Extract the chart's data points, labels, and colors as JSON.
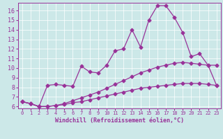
{
  "xlabel": "Windchill (Refroidissement éolien,°C)",
  "bg_color": "#cce8e8",
  "line_color": "#993399",
  "xlim": [
    -0.5,
    23.5
  ],
  "ylim": [
    5.8,
    16.8
  ],
  "xticks": [
    0,
    1,
    2,
    3,
    4,
    5,
    6,
    7,
    8,
    9,
    10,
    11,
    12,
    13,
    14,
    15,
    16,
    17,
    18,
    19,
    20,
    21,
    22,
    23
  ],
  "yticks": [
    6,
    7,
    8,
    9,
    10,
    11,
    12,
    13,
    14,
    15,
    16
  ],
  "line1_y": [
    6.5,
    6.3,
    6.0,
    6.0,
    6.1,
    6.2,
    6.4,
    6.5,
    6.7,
    6.9,
    7.1,
    7.3,
    7.5,
    7.7,
    7.9,
    8.0,
    8.1,
    8.2,
    8.3,
    8.4,
    8.4,
    8.4,
    8.3,
    8.2
  ],
  "line2_y": [
    6.5,
    6.3,
    6.0,
    6.0,
    6.1,
    6.3,
    6.6,
    6.9,
    7.2,
    7.5,
    7.9,
    8.3,
    8.7,
    9.1,
    9.5,
    9.8,
    10.1,
    10.3,
    10.5,
    10.6,
    10.5,
    10.4,
    10.3,
    10.3
  ],
  "line3_y": [
    6.5,
    6.3,
    6.0,
    8.2,
    8.3,
    8.2,
    8.1,
    10.2,
    9.6,
    9.5,
    10.3,
    11.8,
    12.0,
    14.0,
    12.2,
    15.0,
    16.5,
    16.5,
    15.3,
    13.7,
    11.2,
    11.5,
    10.3,
    8.2
  ],
  "xlabel_fontsize": 6,
  "tick_fontsize_x": 5,
  "tick_fontsize_y": 6
}
